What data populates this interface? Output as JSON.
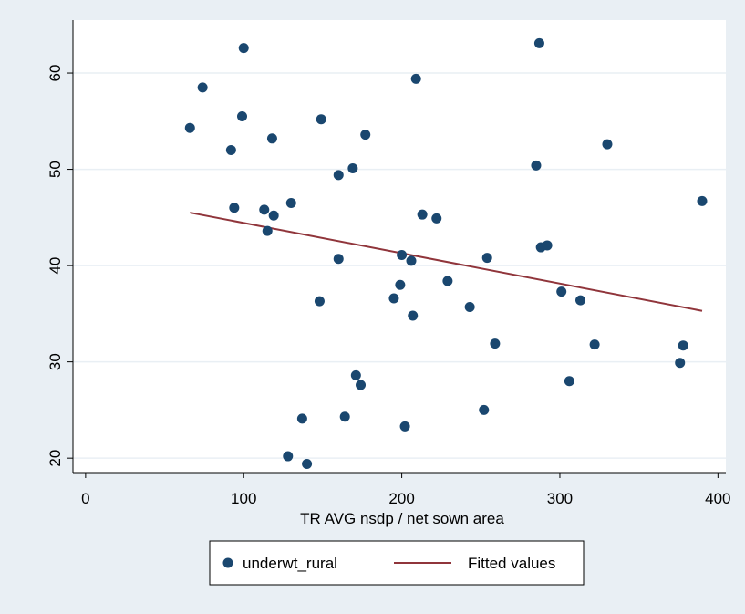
{
  "chart_data": {
    "type": "scatter",
    "title": "",
    "xlabel": "TR AVG nsdp / net sown area",
    "ylabel": "",
    "xlim": [
      -8,
      405
    ],
    "ylim": [
      18.5,
      65.5
    ],
    "x_ticks": [
      0,
      100,
      200,
      300,
      400
    ],
    "y_ticks": [
      20,
      30,
      40,
      50,
      60
    ],
    "grid": true,
    "legend_position": "bottom",
    "colors": {
      "background": "#e9eff4",
      "plot_area": "#ffffff",
      "gridline": "#e9eff4",
      "markers": "#1a476f",
      "fit_line": "#90353b"
    },
    "series": [
      {
        "name": "underwt_rural",
        "kind": "scatter",
        "points": [
          [
            66,
            54.3
          ],
          [
            74,
            58.5
          ],
          [
            92,
            52.0
          ],
          [
            94,
            46.0
          ],
          [
            99,
            55.5
          ],
          [
            100,
            62.6
          ],
          [
            113,
            45.8
          ],
          [
            115,
            43.6
          ],
          [
            118,
            53.2
          ],
          [
            119,
            45.2
          ],
          [
            128,
            20.2
          ],
          [
            130,
            46.5
          ],
          [
            137,
            24.1
          ],
          [
            140,
            19.4
          ],
          [
            148,
            36.3
          ],
          [
            149,
            55.2
          ],
          [
            160,
            40.7
          ],
          [
            160,
            49.4
          ],
          [
            164,
            24.3
          ],
          [
            169,
            50.1
          ],
          [
            171,
            28.6
          ],
          [
            174,
            27.6
          ],
          [
            177,
            53.6
          ],
          [
            195,
            36.6
          ],
          [
            199,
            38.0
          ],
          [
            200,
            41.1
          ],
          [
            202,
            23.3
          ],
          [
            206,
            40.5
          ],
          [
            207,
            34.8
          ],
          [
            209,
            59.4
          ],
          [
            213,
            45.3
          ],
          [
            222,
            44.9
          ],
          [
            229,
            38.4
          ],
          [
            243,
            35.7
          ],
          [
            252,
            25.0
          ],
          [
            254,
            40.8
          ],
          [
            259,
            31.9
          ],
          [
            285,
            50.4
          ],
          [
            287,
            63.1
          ],
          [
            288,
            41.9
          ],
          [
            292,
            42.1
          ],
          [
            301,
            37.3
          ],
          [
            306,
            28.0
          ],
          [
            313,
            36.4
          ],
          [
            322,
            31.8
          ],
          [
            330,
            52.6
          ],
          [
            376,
            29.9
          ],
          [
            378,
            31.7
          ],
          [
            390,
            46.7
          ]
        ]
      },
      {
        "name": "Fitted values",
        "kind": "line",
        "points": [
          [
            66,
            45.5
          ],
          [
            390,
            35.3
          ]
        ]
      }
    ]
  }
}
